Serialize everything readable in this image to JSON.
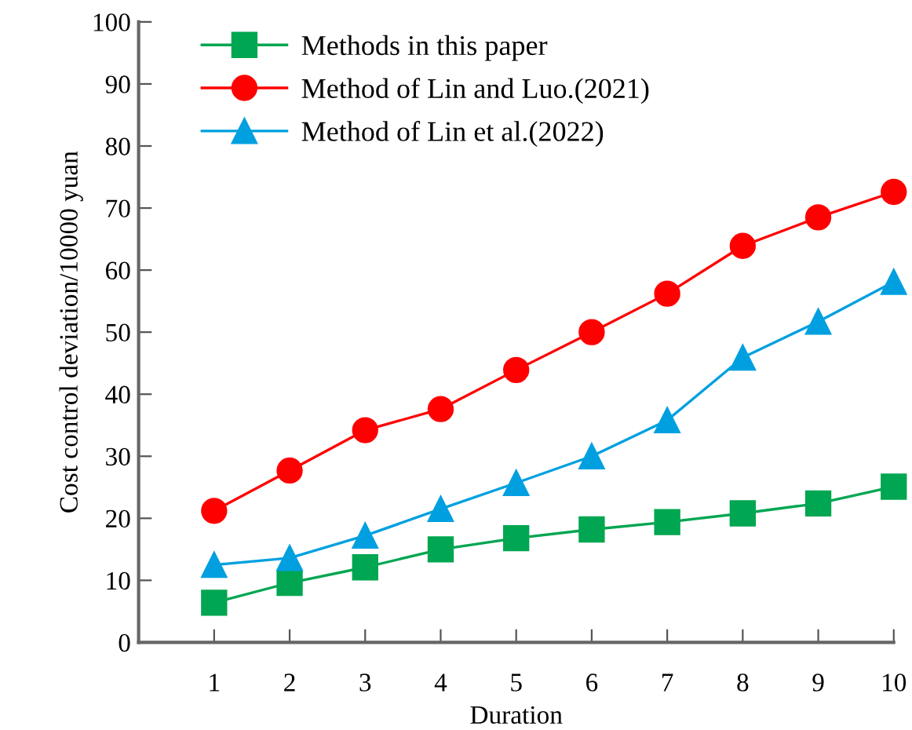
{
  "chart_data": {
    "type": "line",
    "xlabel": "Duration",
    "ylabel": "Cost control deviation/10000 yuan",
    "x": [
      1,
      2,
      3,
      4,
      5,
      6,
      7,
      8,
      9,
      10
    ],
    "series": [
      {
        "name": "Methods in this paper",
        "color": "#00a651",
        "marker": "square",
        "values": [
          6.4,
          9.6,
          12.1,
          15.0,
          16.8,
          18.2,
          19.4,
          20.8,
          22.4,
          25.1
        ]
      },
      {
        "name": "Method of Lin and Luo.(2021)",
        "color": "#ff0000",
        "marker": "circle",
        "values": [
          21.2,
          27.7,
          34.2,
          37.6,
          43.9,
          50.0,
          56.2,
          63.9,
          68.5,
          72.6
        ]
      },
      {
        "name": "Method of Lin et al.(2022)",
        "color": "#00a0e0",
        "marker": "triangle",
        "values": [
          12.5,
          13.6,
          17.2,
          21.5,
          25.7,
          30.0,
          35.8,
          45.9,
          51.7,
          58.1
        ]
      }
    ],
    "xlim": [
      0,
      10
    ],
    "xticks": [
      1,
      2,
      3,
      4,
      5,
      6,
      7,
      8,
      9,
      10
    ],
    "ylim": [
      0,
      100
    ],
    "yticks": [
      0,
      10,
      20,
      30,
      40,
      50,
      60,
      70,
      80,
      90,
      100
    ],
    "grid": false,
    "legend": "top left",
    "line_style": "solid"
  }
}
